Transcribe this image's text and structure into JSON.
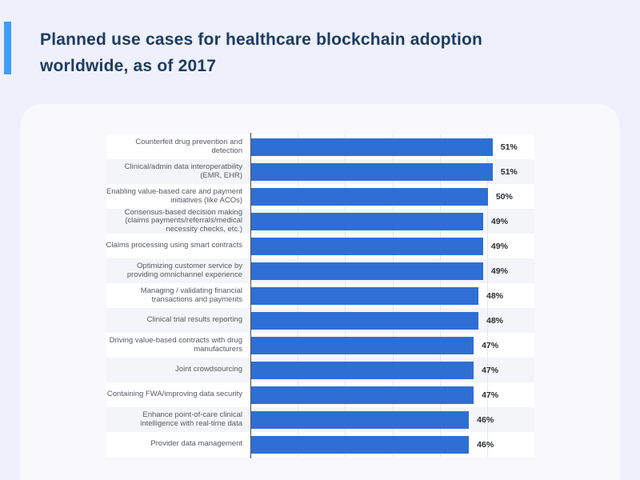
{
  "header": {
    "title_line1": "Planned use cases for healthcare blockchain adoption",
    "title_line2": "worldwide, as of 2017"
  },
  "colors": {
    "accent": "#3f9ef8",
    "bar": "#2e6fd3",
    "page_background": "#eef0fb",
    "card_background": "#f9f9fb",
    "title_text": "#1d3c63",
    "odd_row_stripe": "#ffffff",
    "even_row_stripe": "#f4f5f8"
  },
  "chart_data": {
    "type": "bar",
    "orientation": "horizontal",
    "title": "Planned use cases for healthcare blockchain adoption worldwide, as of 2017",
    "unit": "%",
    "xlim": [
      0,
      60
    ],
    "grid": "vertical gridlines every 10%",
    "legend": "none",
    "categories": [
      "Counterfeit drug prevention and detection",
      "Clinical/admin data interoperatbility (EMR, EHR)",
      "Enabling value-based care and payment initiatives (like ACOs)",
      "Consensus-based decision making (claims payments/referrals/medical necessity checks, etc.)",
      "Claims processing using smart contracts",
      "Optimizing customer service by providing omnichannel experience",
      "Managing / validating financial transactions and payments",
      "Clinical trial results reporting",
      "Driving value-based contracts with drug manufacturers",
      "Joint crowdsourcing",
      "Containing FWA/improving data security",
      "Enhance point-of-care clinical intelligence with real-time data",
      "Provider data management"
    ],
    "category_lines": [
      [
        "Counterfeit drug prevention and",
        "detection"
      ],
      [
        "Clinical/admin data interoperatbility",
        "(EMR, EHR)"
      ],
      [
        "Enabling value-based care and payment",
        "initiatives (like ACOs)"
      ],
      [
        "Consensus-based decision making",
        "(claims payments/referrals/medical",
        "necessity checks, etc.)"
      ],
      [
        "Claims processing using smart contracts"
      ],
      [
        "Optimizing customer service by",
        "providing omnichannel experience"
      ],
      [
        "Managing / validating financial",
        "transactions and payments"
      ],
      [
        "Clinical trial results reporting"
      ],
      [
        "Driving value-based contracts with drug",
        "manufacturers"
      ],
      [
        "Joint crowdsourcing"
      ],
      [
        "Containing FWA/improving data security"
      ],
      [
        "Enhance point-of-care clinical",
        "intelligence with real-time data"
      ],
      [
        "Provider data management"
      ]
    ],
    "values": [
      51,
      51,
      50,
      49,
      49,
      49,
      48,
      48,
      47,
      47,
      47,
      46,
      46
    ],
    "value_labels": [
      "51%",
      "51%",
      "50%",
      "49%",
      "49%",
      "49%",
      "48%",
      "48%",
      "47%",
      "47%",
      "47%",
      "46%",
      "46%"
    ]
  }
}
